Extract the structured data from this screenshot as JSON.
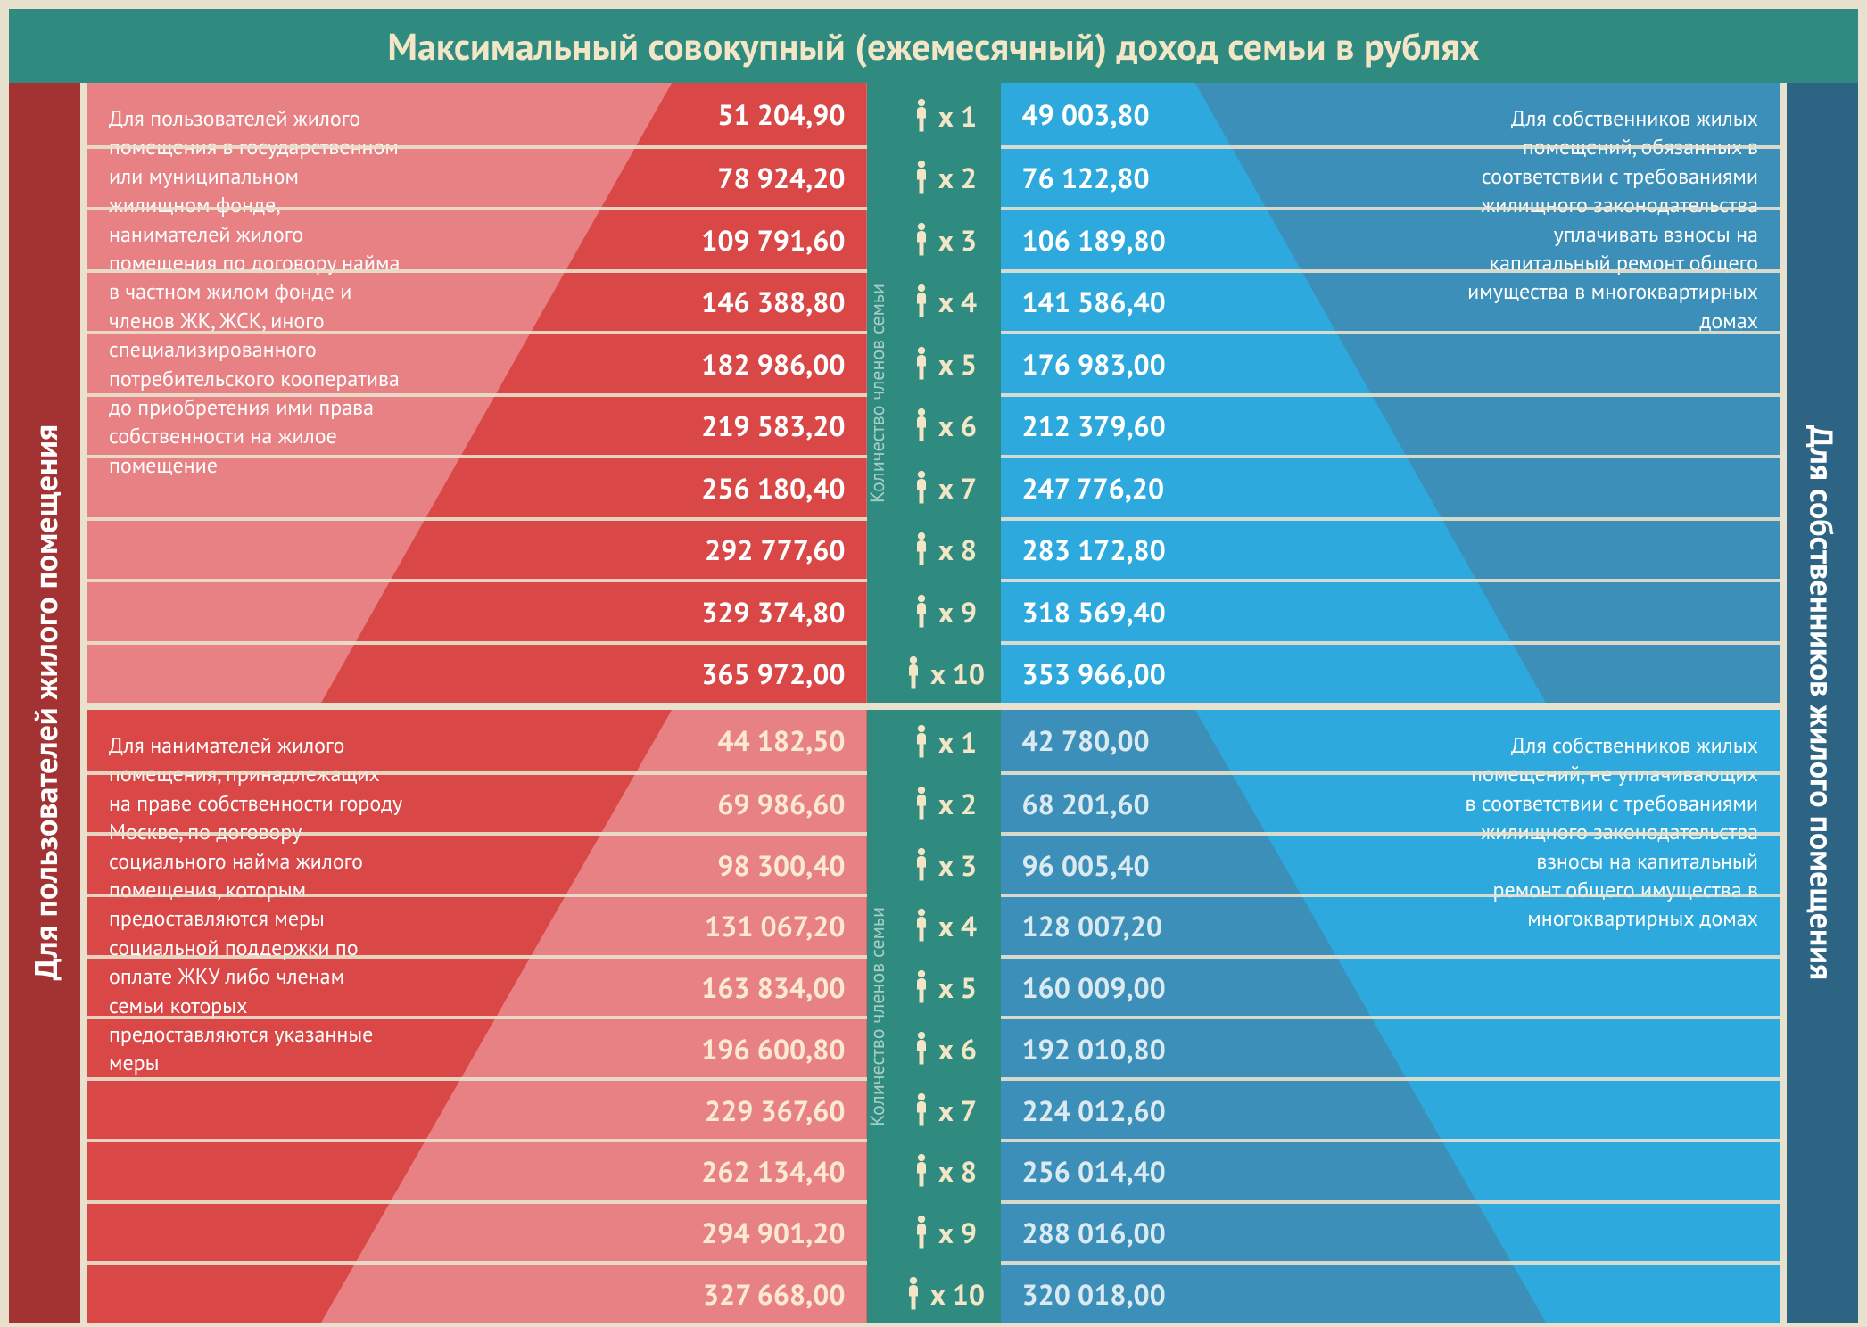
{
  "title": "Максимальный совокупный (ежемесячный) доход семьи в рублях",
  "left_side_label": "Для пользователей жилого помещения",
  "right_side_label": "Для собственников жилого помещения",
  "center_axis_label": "Количество членов семьи",
  "colors": {
    "background": "#e8e1cd",
    "title_bg": "#2f8a7f",
    "title_fg": "#f3e6c7",
    "left_rail": "#a33332",
    "right_rail": "#2e6483",
    "center_bg": "#2f8a7f",
    "q1_left_bg": "#e78184",
    "q1_left_pyr": "#d94746",
    "q1_right_bg": "#3c8fb8",
    "q1_right_pyr": "#2ea9dd",
    "q2_left_bg": "#d94746",
    "q2_left_pyr": "#e78184",
    "q2_right_bg": "#2ea9dd",
    "q2_right_pyr": "#3c8fb8",
    "divider": "#e8e1cd",
    "step_text": "#ffffff"
  },
  "typography": {
    "title_fontsize": 42,
    "desc_fontsize": 24,
    "value_fontsize": 32,
    "side_label_fontsize": 36,
    "center_label_fontsize": 22
  },
  "rows_per_block": 10,
  "members": [
    "1",
    "2",
    "3",
    "4",
    "5",
    "6",
    "7",
    "8",
    "9",
    "10"
  ],
  "blocks": {
    "top_left": {
      "desc": "Для пользователей жилого помещения в государственном или муниципальном жилищном фонде, нанимателей жилого помещения по договору найма в частном жилом фонде и членов ЖК, ЖСК, иного специализированного потребительского кооператива до приобретения ими права собственности на жилое помещение",
      "values": [
        "51 204,90",
        "78 924,20",
        "109 791,60",
        "146 388,80",
        "182 986,00",
        "219 583,20",
        "256 180,40",
        "292 777,60",
        "329 374,80",
        "365 972,00"
      ]
    },
    "top_right": {
      "desc": "Для собственников жилых помещений, обязанных в соответствии с требованиями жилищного законодательства уплачивать взносы на капитальный ремонт общего имущества в многоквартирных домах",
      "values": [
        "49 003,80",
        "76 122,80",
        "106 189,80",
        "141 586,40",
        "176 983,00",
        "212 379,60",
        "247 776,20",
        "283 172,80",
        "318 569,40",
        "353 966,00"
      ]
    },
    "bottom_left": {
      "desc": "Для нанимателей жилого помещения, принадлежащих на праве собственности городу Москве, по договору социального найма жилого помещения, которым предоставляются меры социальной поддержки по оплате ЖКУ либо членам семьи которых предоставляются указанные меры",
      "values": [
        "44 182,50",
        "69 986,60",
        "98 300,40",
        "131 067,20",
        "163 834,00",
        "196 600,80",
        "229 367,60",
        "262 134,40",
        "294 901,20",
        "327 668,00"
      ]
    },
    "bottom_right": {
      "desc": "Для собственников жилых помещений, не уплачивающих в соответствии с требованиями жилищного законодательства взносы на капитальный ремонт общего имущества в многоквартирных домах",
      "values": [
        "42 780,00",
        "68 201,60",
        "96 005,40",
        "128 007,20",
        "160 009,00",
        "192 010,80",
        "224 012,60",
        "256 014,40",
        "288 016,00",
        "320 018,00"
      ]
    }
  }
}
